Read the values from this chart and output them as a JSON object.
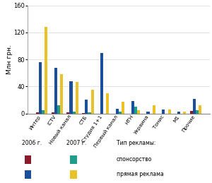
{
  "channels": [
    "Интер",
    "ICTV",
    "Новый канал",
    "СТБ",
    "Студия 1+1",
    "Первый канал",
    "НТН",
    "Украина",
    "Тонис",
    "М1",
    "Прочие"
  ],
  "sponsorship_2006": [
    2,
    2,
    2,
    1,
    0,
    0,
    0,
    0,
    0,
    0,
    4
  ],
  "direct_2006": [
    76,
    68,
    48,
    20,
    90,
    7,
    18,
    3,
    6,
    3,
    22
  ],
  "sponsorship_2007": [
    5,
    12,
    3,
    2,
    0,
    3,
    10,
    0,
    0,
    0,
    5
  ],
  "direct_2007": [
    128,
    58,
    47,
    35,
    30,
    17,
    5,
    12,
    6,
    3,
    12
  ],
  "color_sp2006": "#8B1A2C",
  "color_dr2006": "#1A4F9C",
  "color_sp2007": "#1E9E8A",
  "color_dr2007": "#E8C227",
  "ylabel": "Млн грн.",
  "ylim": [
    0,
    160
  ],
  "yticks": [
    0,
    40,
    80,
    120,
    160
  ],
  "bar_width": 0.19,
  "legend_2006": "2006 г.",
  "legend_2007": "2007 г.",
  "legend_type": "Тип рекламы:",
  "legend_sp": "спонсорство",
  "legend_dr": "прямая реклама"
}
